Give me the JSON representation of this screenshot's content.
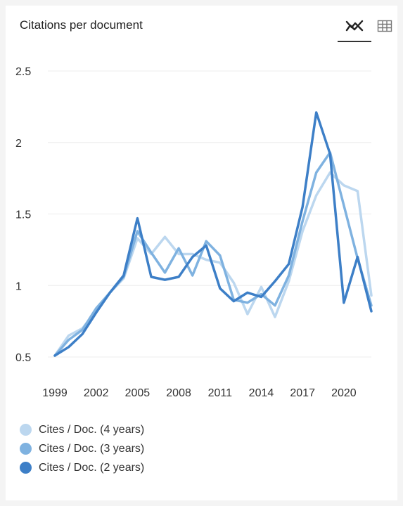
{
  "header": {
    "title": "Citations per document",
    "chart_view_icon": "line-chart-icon",
    "table_view_icon": "table-grid-icon"
  },
  "colors": {
    "grid": "#ececec",
    "series": [
      "#bcd7ef",
      "#7fb2e0",
      "#3d7fc7"
    ]
  },
  "chart_data": {
    "type": "line",
    "title": "Citations per document",
    "xlabel": "",
    "ylabel": "",
    "x": [
      1999,
      2000,
      2001,
      2002,
      2003,
      2004,
      2005,
      2006,
      2007,
      2008,
      2009,
      2010,
      2011,
      2012,
      2013,
      2014,
      2015,
      2016,
      2017,
      2018,
      2019,
      2020,
      2021,
      2022
    ],
    "x_tick_labels": [
      "1999",
      "2002",
      "2005",
      "2008",
      "2011",
      "2014",
      "2017",
      "2020"
    ],
    "x_tick_values": [
      1999,
      2002,
      2005,
      2008,
      2011,
      2014,
      2017,
      2020
    ],
    "ylim": [
      0.5,
      2.5
    ],
    "y_ticks": [
      0.5,
      1,
      1.5,
      2,
      2.5
    ],
    "y_tick_labels": [
      "0.5",
      "1",
      "1.5",
      "2",
      "2.5"
    ],
    "grid": true,
    "legend_position": "bottom-left",
    "series": [
      {
        "name": "Cites / Doc. (4 years)",
        "values": [
          0.51,
          0.65,
          0.7,
          0.82,
          0.95,
          1.05,
          1.33,
          1.22,
          1.34,
          1.22,
          1.22,
          1.18,
          1.16,
          1.02,
          0.8,
          0.99,
          0.78,
          1.03,
          1.38,
          1.63,
          1.79,
          1.7,
          1.66,
          0.93
        ]
      },
      {
        "name": "Cites / Doc. (3 years)",
        "values": [
          0.51,
          0.62,
          0.69,
          0.84,
          0.95,
          1.06,
          1.38,
          1.23,
          1.09,
          1.26,
          1.07,
          1.31,
          1.21,
          0.9,
          0.88,
          0.94,
          0.86,
          1.07,
          1.45,
          1.79,
          1.93,
          1.56,
          1.19,
          0.86
        ]
      },
      {
        "name": "Cites / Doc. (2 years)",
        "values": [
          0.51,
          0.57,
          0.66,
          0.81,
          0.95,
          1.07,
          1.47,
          1.06,
          1.04,
          1.06,
          1.2,
          1.28,
          0.98,
          0.89,
          0.95,
          0.92,
          1.03,
          1.15,
          1.55,
          2.21,
          1.92,
          0.88,
          1.2,
          0.82
        ]
      }
    ]
  }
}
